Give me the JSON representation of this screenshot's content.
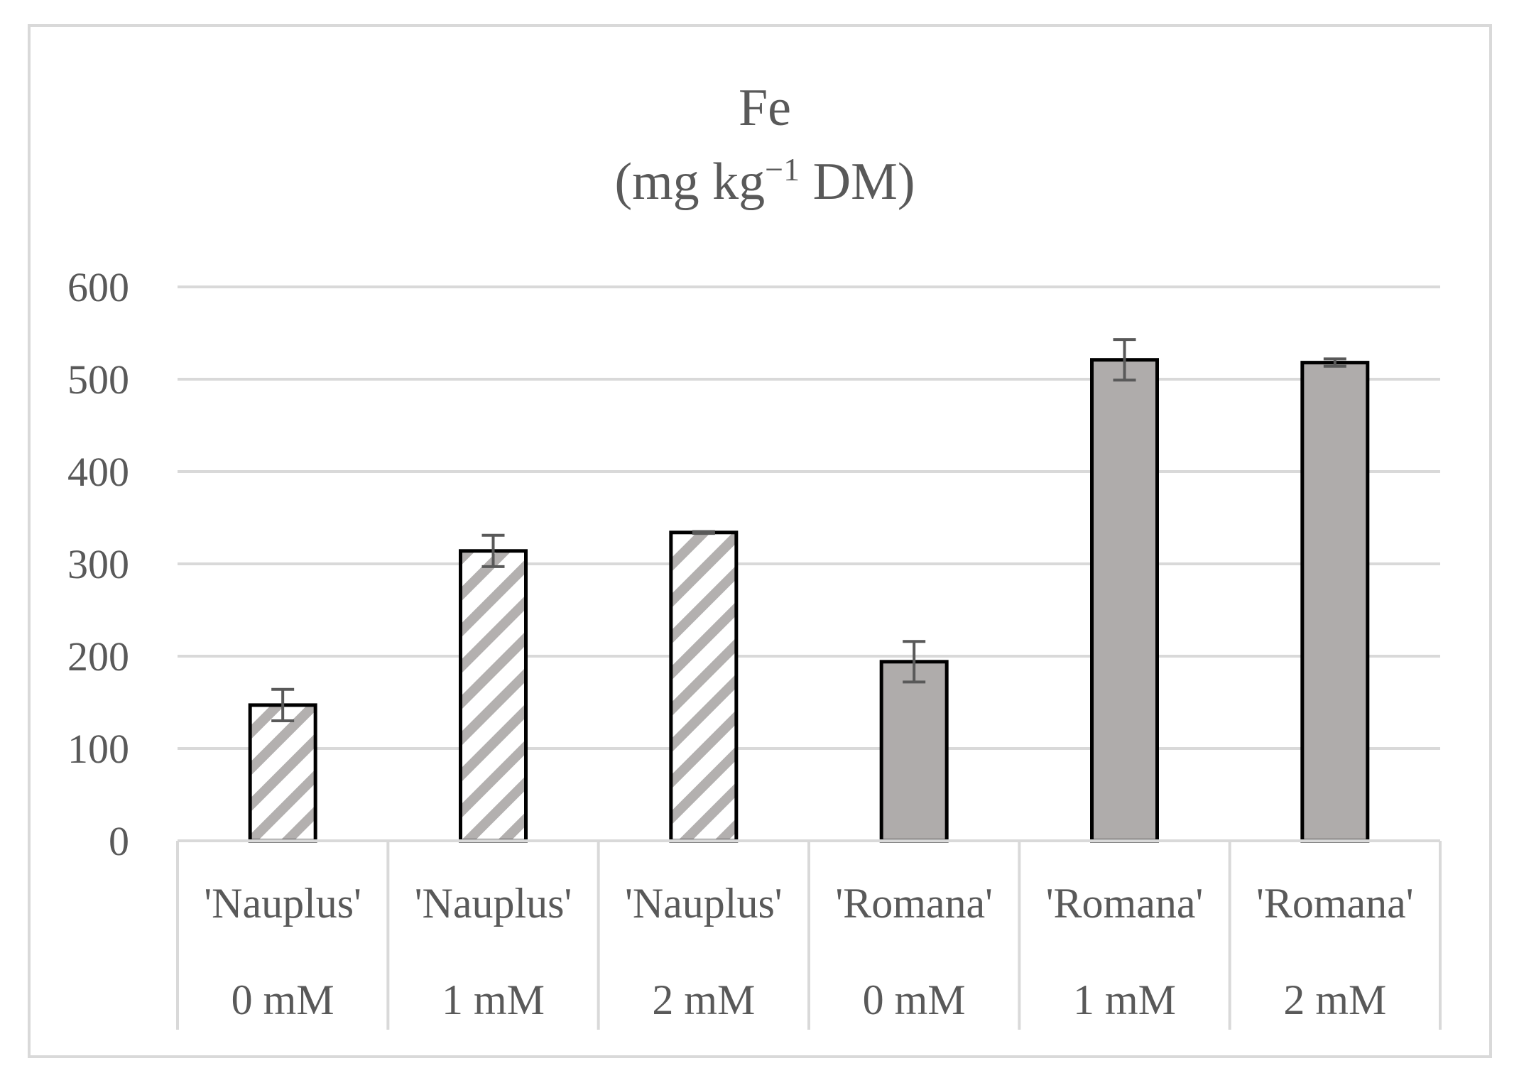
{
  "chart_data": {
    "type": "bar",
    "title_line1": "Fe",
    "title_line2_prefix": "(mg kg",
    "title_line2_sup": "−1",
    "title_line2_suffix": " DM)",
    "ylim": [
      0,
      600
    ],
    "yticks": [
      0,
      100,
      200,
      300,
      400,
      500,
      600
    ],
    "grid": true,
    "categories": [
      {
        "cultivar": "'Nauplus'",
        "treatment": "0 mM"
      },
      {
        "cultivar": "'Nauplus'",
        "treatment": "1 mM"
      },
      {
        "cultivar": "'Nauplus'",
        "treatment": "2 mM"
      },
      {
        "cultivar": "'Romana'",
        "treatment": "0 mM"
      },
      {
        "cultivar": "'Romana'",
        "treatment": "1 mM"
      },
      {
        "cultivar": "'Romana'",
        "treatment": "2 mM"
      }
    ],
    "values": [
      147,
      314,
      334,
      194,
      521,
      518
    ],
    "errors": [
      17,
      17,
      1,
      22,
      22,
      4
    ],
    "styles": [
      "hatched",
      "hatched",
      "hatched",
      "solid",
      "solid",
      "solid"
    ],
    "colors": {
      "solid_fill": "#afacab",
      "hatch_stripe": "#b3b0af",
      "outline": "#000000",
      "grid": "#d9d9d9",
      "error_bar": "#595959",
      "text": "#595959",
      "frame": "#d9d9d9"
    }
  }
}
